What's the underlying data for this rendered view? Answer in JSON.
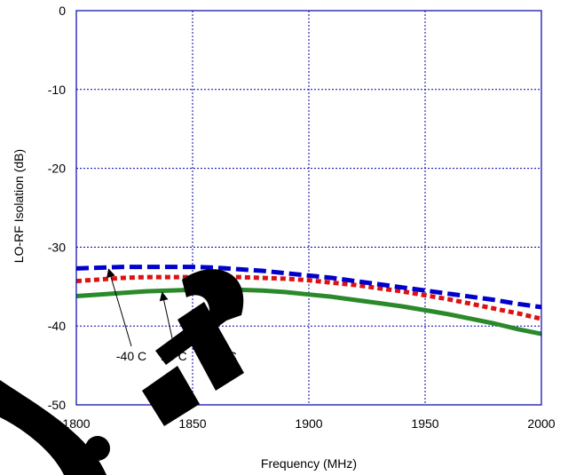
{
  "chart_data": {
    "type": "line",
    "title": "",
    "xlabel": "Frequency (MHz)",
    "ylabel": "LO-RF Isolation (dB)",
    "xlim": [
      1800,
      2000
    ],
    "ylim": [
      -50,
      0
    ],
    "x_ticks": [
      1800,
      1850,
      1900,
      1950,
      2000
    ],
    "y_ticks": [
      0,
      -10,
      -20,
      -30,
      -40,
      -50
    ],
    "grid": true,
    "legend": "none",
    "series": [
      {
        "name": "-40 C",
        "color": "#0000cc",
        "dash": "long-dash",
        "x": [
          1800,
          1810,
          1820,
          1830,
          1840,
          1850,
          1860,
          1870,
          1880,
          1890,
          1900,
          1910,
          1920,
          1930,
          1940,
          1950,
          1960,
          1970,
          1980,
          1990,
          2000
        ],
        "y": [
          -32.7,
          -32.6,
          -32.5,
          -32.5,
          -32.5,
          -32.5,
          -32.6,
          -32.8,
          -33.0,
          -33.3,
          -33.6,
          -33.9,
          -34.3,
          -34.7,
          -35.1,
          -35.5,
          -35.9,
          -36.3,
          -36.7,
          -37.2,
          -37.6
        ]
      },
      {
        "name": "25 C",
        "color": "#2a8a2a",
        "dash": "solid",
        "x": [
          1800,
          1810,
          1820,
          1830,
          1840,
          1850,
          1860,
          1870,
          1880,
          1890,
          1900,
          1910,
          1920,
          1930,
          1940,
          1950,
          1960,
          1970,
          1980,
          1990,
          2000
        ],
        "y": [
          -36.2,
          -36.0,
          -35.8,
          -35.6,
          -35.5,
          -35.4,
          -35.4,
          -35.4,
          -35.5,
          -35.7,
          -36.0,
          -36.3,
          -36.7,
          -37.1,
          -37.5,
          -38.0,
          -38.5,
          -39.1,
          -39.7,
          -40.4,
          -41.0
        ]
      },
      {
        "name": "85 C",
        "color": "#dd1111",
        "dash": "short-dash",
        "x": [
          1800,
          1810,
          1820,
          1830,
          1840,
          1850,
          1860,
          1870,
          1880,
          1890,
          1900,
          1910,
          1920,
          1930,
          1940,
          1950,
          1960,
          1970,
          1980,
          1990,
          2000
        ],
        "y": [
          -34.3,
          -34.1,
          -33.9,
          -33.8,
          -33.8,
          -33.8,
          -33.8,
          -33.8,
          -33.9,
          -34.0,
          -34.2,
          -34.5,
          -34.8,
          -35.2,
          -35.6,
          -36.1,
          -36.6,
          -37.2,
          -37.8,
          -38.4,
          -39.1
        ]
      }
    ],
    "annotations": [
      {
        "text": "-40 C",
        "series": "-40 C",
        "x": 1814
      },
      {
        "text": "25 C",
        "series": "25 C",
        "x": 1837
      },
      {
        "text": "85 C",
        "series": "85 C",
        "x": 1855
      }
    ],
    "colors": {
      "frame": "#0000aa",
      "grid": "#0000aa",
      "watermark": "#000000"
    }
  }
}
